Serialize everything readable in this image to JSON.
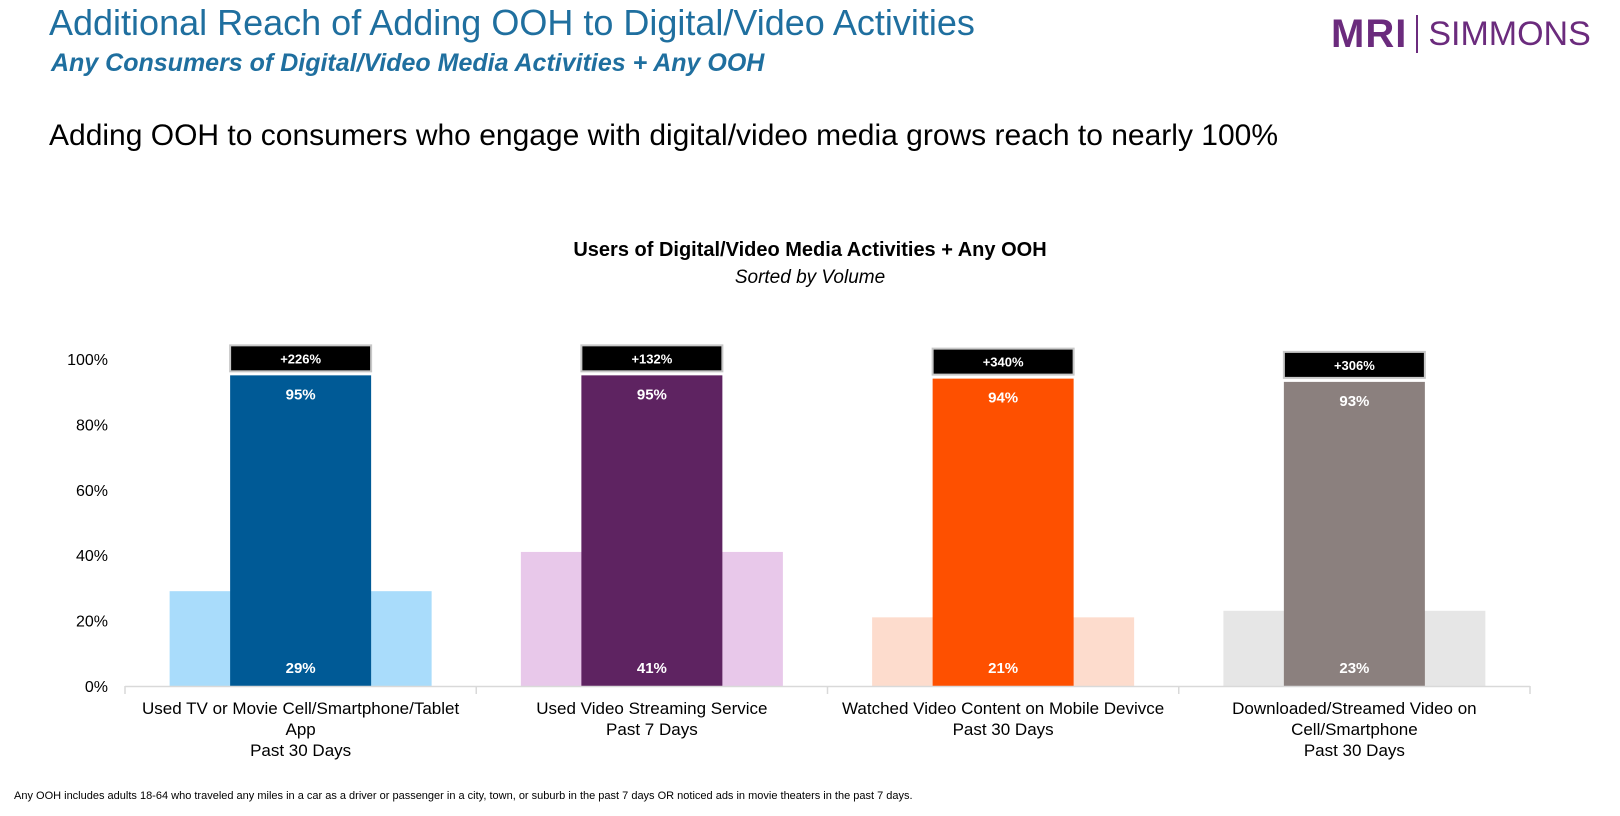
{
  "header": {
    "title": "Additional Reach of Adding OOH to Digital/Video Activities",
    "subtitle": "Any Consumers of Digital/Video Media Activities + Any OOH",
    "logo_mri": "MRI",
    "logo_simmons": "SIMMONS"
  },
  "headline": "Adding OOH to consumers who engage with digital/video media grows reach to nearly 100%",
  "footnote": "Any OOH includes adults 18-64 who traveled any miles in a car as a driver or passenger in a city, town, or suburb in the past 7 days OR noticed ads in movie theaters in the past 7 days.",
  "colors": {
    "title": "#1f6f9f",
    "logo": "#6b2b7d",
    "axis": "#d9d9d9",
    "label_box": "#000000"
  },
  "chart_data": {
    "type": "bar",
    "title": "Users of Digital/Video Media Activities + Any OOH",
    "subtitle": "Sorted by Volume",
    "ylim": [
      0,
      100
    ],
    "yticks": [
      0,
      20,
      40,
      60,
      80,
      100
    ],
    "ytick_labels": [
      "0%",
      "20%",
      "40%",
      "60%",
      "80%",
      "100%"
    ],
    "grid": false,
    "legend": "none",
    "categories": [
      {
        "lines": [
          "Used TV or Movie Cell/Smartphone/Tablet",
          "App",
          "Past 30 Days"
        ],
        "base": 29,
        "base_label": "29%",
        "total": 95,
        "total_label": "95%",
        "increase_label": "+226%",
        "dark_color": "#005a96",
        "light_color": "#a9dcfb"
      },
      {
        "lines": [
          "Used Video Streaming Service",
          "Past 7 Days"
        ],
        "base": 41,
        "base_label": "41%",
        "total": 95,
        "total_label": "95%",
        "increase_label": "+132%",
        "dark_color": "#5e2361",
        "light_color": "#e8c8ea"
      },
      {
        "lines": [
          "Watched Video Content on Mobile Devivce",
          "Past 30 Days"
        ],
        "base": 21,
        "base_label": "21%",
        "total": 94,
        "total_label": "94%",
        "increase_label": "+340%",
        "dark_color": "#fe5000",
        "light_color": "#fddccd"
      },
      {
        "lines": [
          "Downloaded/Streamed Video on",
          "Cell/Smartphone",
          "Past 30 Days"
        ],
        "base": 23,
        "base_label": "23%",
        "total": 93,
        "total_label": "93%",
        "increase_label": "+306%",
        "dark_color": "#8b807e",
        "light_color": "#e6e6e6"
      }
    ]
  }
}
